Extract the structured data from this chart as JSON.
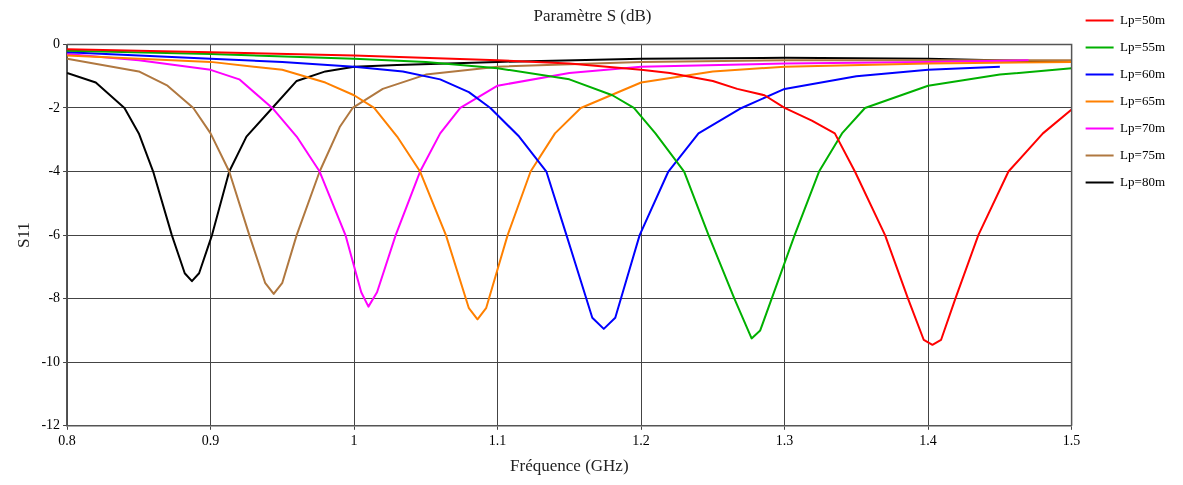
{
  "chart_data": {
    "type": "line",
    "title": "Paramètre S (dB)",
    "xlabel": "Fréquence (GHz)",
    "ylabel": "S11",
    "xlim": [
      0.8,
      1.5
    ],
    "xticks": [
      0.8,
      0.9,
      1,
      1.1,
      1.2,
      1.3,
      1.4,
      1.5
    ],
    "ylim": [
      -12,
      0
    ],
    "yticks": [
      -12,
      -10,
      -8,
      -6,
      -4,
      -2,
      0
    ],
    "grid": true,
    "legend": "right",
    "series": [
      {
        "name": "Lp=50m",
        "color": "#ff0000",
        "x": [
          0.8,
          0.9,
          1.0,
          1.1,
          1.15,
          1.2,
          1.22,
          1.25,
          1.267,
          1.286,
          1.3,
          1.319,
          1.335,
          1.349,
          1.37,
          1.386,
          1.397,
          1.403,
          1.409,
          1.419,
          1.435,
          1.456,
          1.48,
          1.5
        ],
        "values": [
          -0.15,
          -0.25,
          -0.35,
          -0.5,
          -0.6,
          -0.8,
          -0.9,
          -1.15,
          -1.4,
          -1.6,
          -2.0,
          -2.4,
          -2.8,
          -4.0,
          -6.0,
          -8.0,
          -9.3,
          -9.45,
          -9.3,
          -8.0,
          -6.0,
          -4.0,
          -2.8,
          -2.05
        ]
      },
      {
        "name": "Lp=55m",
        "color": "#00b000",
        "x": [
          0.8,
          0.9,
          1.0,
          1.05,
          1.1,
          1.15,
          1.18,
          1.195,
          1.21,
          1.23,
          1.247,
          1.265,
          1.277,
          1.283,
          1.291,
          1.307,
          1.324,
          1.34,
          1.356,
          1.4,
          1.45,
          1.5
        ],
        "values": [
          -0.2,
          -0.3,
          -0.45,
          -0.55,
          -0.75,
          -1.1,
          -1.6,
          -2.0,
          -2.8,
          -4.0,
          -6.0,
          -8.0,
          -9.25,
          -9.0,
          -8.0,
          -6.0,
          -4.0,
          -2.8,
          -2.0,
          -1.3,
          -0.95,
          -0.75
        ]
      },
      {
        "name": "Lp=60m",
        "color": "#0000ff",
        "x": [
          0.8,
          0.9,
          0.95,
          1.0,
          1.034,
          1.06,
          1.08,
          1.095,
          1.115,
          1.134,
          1.148,
          1.166,
          1.174,
          1.182,
          1.199,
          1.219,
          1.24,
          1.27,
          1.3,
          1.35,
          1.4,
          1.45
        ],
        "values": [
          -0.25,
          -0.45,
          -0.55,
          -0.7,
          -0.85,
          -1.1,
          -1.5,
          -2.0,
          -2.9,
          -4.0,
          -6.0,
          -8.6,
          -8.95,
          -8.6,
          -6.0,
          -4.0,
          -2.8,
          -2.0,
          -1.4,
          -1.0,
          -0.8,
          -0.7
        ]
      },
      {
        "name": "Lp=65m",
        "color": "#ff8000",
        "x": [
          0.8,
          0.9,
          0.95,
          0.98,
          1.0,
          1.014,
          1.03,
          1.046,
          1.064,
          1.08,
          1.086,
          1.092,
          1.107,
          1.123,
          1.14,
          1.158,
          1.2,
          1.25,
          1.3,
          1.4,
          1.5
        ],
        "values": [
          -0.35,
          -0.55,
          -0.8,
          -1.2,
          -1.6,
          -2.0,
          -2.9,
          -4.0,
          -6.0,
          -8.3,
          -8.65,
          -8.3,
          -6.0,
          -4.0,
          -2.8,
          -2.0,
          -1.2,
          -0.85,
          -0.7,
          -0.6,
          -0.55
        ]
      },
      {
        "name": "Lp=70m",
        "color": "#ff00ff",
        "x": [
          0.8,
          0.85,
          0.9,
          0.92,
          0.943,
          0.96,
          0.976,
          0.994,
          1.005,
          1.01,
          1.016,
          1.029,
          1.046,
          1.06,
          1.074,
          1.1,
          1.15,
          1.2,
          1.3,
          1.4,
          1.47
        ],
        "values": [
          -0.3,
          -0.5,
          -0.8,
          -1.1,
          -2.0,
          -2.9,
          -4.0,
          -6.0,
          -7.8,
          -8.25,
          -7.8,
          -6.0,
          -4.0,
          -2.8,
          -2.0,
          -1.3,
          -0.9,
          -0.7,
          -0.6,
          -0.55,
          -0.5
        ]
      },
      {
        "name": "Lp=75m",
        "color": "#b07840",
        "x": [
          0.8,
          0.85,
          0.87,
          0.888,
          0.9,
          0.913,
          0.927,
          0.938,
          0.944,
          0.95,
          0.96,
          0.976,
          0.99,
          0.999,
          1.02,
          1.05,
          1.1,
          1.2,
          1.3,
          1.4,
          1.5
        ],
        "values": [
          -0.45,
          -0.85,
          -1.3,
          -2.0,
          -2.8,
          -4.0,
          -6.0,
          -7.5,
          -7.85,
          -7.5,
          -6.0,
          -4.0,
          -2.6,
          -2.0,
          -1.4,
          -0.95,
          -0.7,
          -0.55,
          -0.5,
          -0.5,
          -0.5
        ]
      },
      {
        "name": "Lp=80m",
        "color": "#000000",
        "x": [
          0.8,
          0.82,
          0.84,
          0.85,
          0.86,
          0.873,
          0.882,
          0.887,
          0.892,
          0.901,
          0.913,
          0.925,
          0.943,
          0.96,
          0.98,
          1.0,
          1.03,
          1.1,
          1.2,
          1.3,
          1.4,
          1.5
        ],
        "values": [
          -0.9,
          -1.2,
          -2.0,
          -2.8,
          -4.0,
          -6.0,
          -7.2,
          -7.45,
          -7.2,
          -6.0,
          -4.0,
          -2.9,
          -2.0,
          -1.15,
          -0.85,
          -0.7,
          -0.65,
          -0.55,
          -0.45,
          -0.42,
          -0.45,
          -0.55
        ]
      }
    ]
  }
}
